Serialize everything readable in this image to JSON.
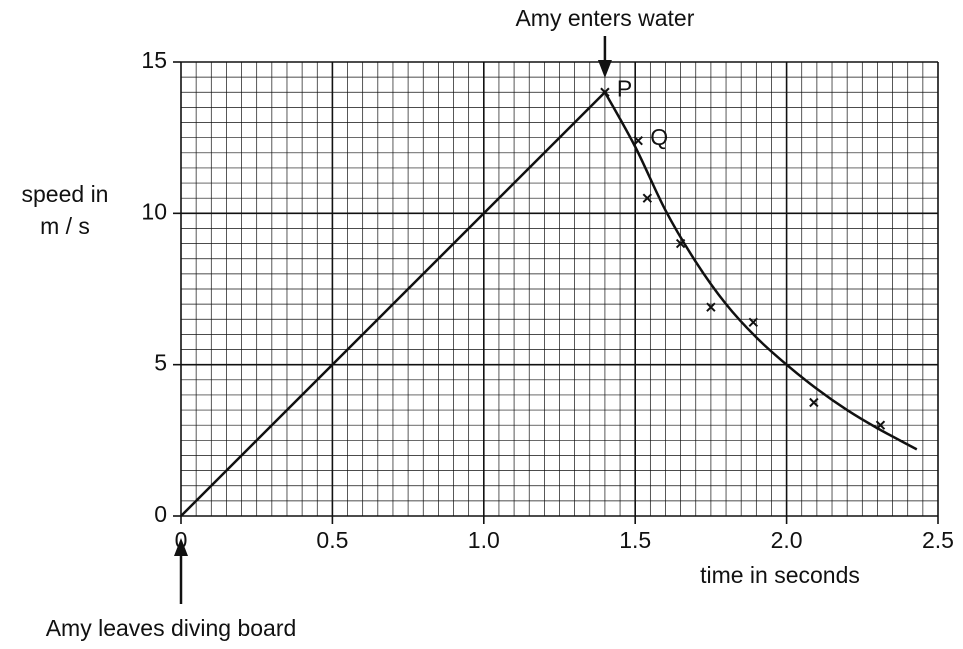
{
  "chart_data": {
    "type": "line",
    "xlabel": "time in seconds",
    "ylabel": [
      "speed in",
      "m / s"
    ],
    "xlim": [
      0,
      2.5
    ],
    "ylim": [
      0,
      15
    ],
    "xticks": [
      0,
      0.5,
      {
        "value": 1,
        "label": "1.0"
      },
      1.5,
      {
        "value": 2,
        "label": "2.0"
      },
      2.5
    ],
    "yticks": [
      0,
      5,
      10,
      15
    ],
    "grid": true,
    "minor_grid": {
      "x": 0.05,
      "y": 0.5
    },
    "color": "#111111",
    "lines": [
      {
        "x": [
          0,
          1.4
        ],
        "values": [
          0,
          14
        ]
      },
      {
        "x": [
          1.4,
          1.5,
          1.6,
          1.7,
          1.8,
          1.9,
          2.0,
          2.1,
          2.2,
          2.3,
          2.43
        ],
        "values": [
          14,
          12.2,
          10.1,
          8.4,
          7.0,
          5.9,
          5.0,
          4.2,
          3.5,
          2.9,
          2.2
        ]
      }
    ],
    "points": {
      "x": [
        1.4,
        1.51,
        1.54,
        1.65,
        1.75,
        1.89,
        2.09,
        2.31
      ],
      "values": [
        14,
        12.4,
        10.5,
        9.0,
        6.9,
        6.4,
        3.75,
        3.0
      ]
    },
    "point_labels": [
      {
        "text": "P",
        "x": 1.4,
        "y": 14
      },
      {
        "text": "Q",
        "x": 1.51,
        "y": 12.4
      }
    ],
    "annotations": [
      {
        "text": "Amy enters water",
        "x": 1.4,
        "position": "top"
      },
      {
        "text": "Amy leaves diving board",
        "x": 0,
        "position": "bottom"
      }
    ]
  }
}
